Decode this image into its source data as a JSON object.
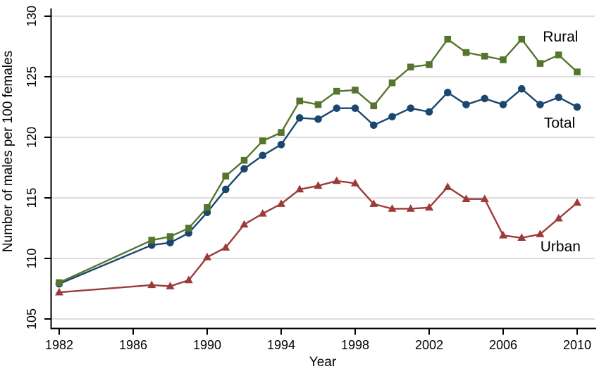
{
  "chart": {
    "y_axis_title": "Number of males per 100 females",
    "x_axis_title": "Year"
  },
  "chart_data": {
    "type": "line",
    "title": "",
    "xlabel": "Year",
    "ylabel": "Number of males per 100 females",
    "x": [
      1982,
      1987,
      1988,
      1989,
      1990,
      1991,
      1992,
      1993,
      1994,
      1995,
      1996,
      1997,
      1998,
      1999,
      2000,
      2001,
      2002,
      2003,
      2004,
      2005,
      2006,
      2007,
      2008,
      2009,
      2010
    ],
    "series": [
      {
        "name": "Rural",
        "label": "Rural",
        "marker": "square",
        "color": "#55752f",
        "values": [
          108.0,
          111.5,
          111.8,
          112.5,
          114.2,
          116.8,
          118.1,
          119.7,
          120.4,
          123.0,
          122.7,
          123.8,
          123.9,
          122.6,
          124.5,
          125.8,
          126.0,
          128.1,
          127.0,
          126.7,
          126.4,
          128.1,
          126.1,
          126.8,
          125.4
        ],
        "label_pos": {
          "year": 2009.1,
          "value": 128.3
        }
      },
      {
        "name": "Total",
        "label": "Total",
        "marker": "circle",
        "color": "#1a476f",
        "values": [
          107.9,
          111.1,
          111.3,
          112.1,
          113.8,
          115.7,
          117.4,
          118.5,
          119.4,
          121.6,
          121.5,
          122.4,
          122.4,
          121.0,
          121.7,
          122.4,
          122.1,
          123.7,
          122.7,
          123.2,
          122.7,
          124.0,
          122.7,
          123.3,
          122.5
        ],
        "label_pos": {
          "year": 2009.05,
          "value": 121.2
        }
      },
      {
        "name": "Urban",
        "label": "Urban",
        "marker": "triangle",
        "color": "#9c3a3a",
        "values": [
          107.2,
          107.8,
          107.7,
          108.2,
          110.1,
          110.9,
          112.8,
          113.7,
          114.5,
          115.7,
          116.0,
          116.4,
          116.2,
          114.5,
          114.1,
          114.1,
          114.2,
          115.9,
          114.9,
          114.9,
          111.9,
          111.7,
          112.0,
          113.3,
          114.6
        ],
        "label_pos": {
          "year": 2009.1,
          "value": 111.0
        }
      }
    ],
    "draw_order": [
      "Total",
      "Rural",
      "Urban"
    ],
    "xticks": [
      1982,
      1986,
      1990,
      1994,
      1998,
      2002,
      2006,
      2010
    ],
    "yticks": [
      105,
      110,
      115,
      120,
      125,
      130
    ],
    "xlim": [
      1981.6,
      2010.9
    ],
    "ylim": [
      104.2,
      130.7
    ],
    "grid": "horizontal",
    "grid_color": "#c9c9c9",
    "axis_color": "#000000",
    "legend": "direct-labels-right"
  }
}
